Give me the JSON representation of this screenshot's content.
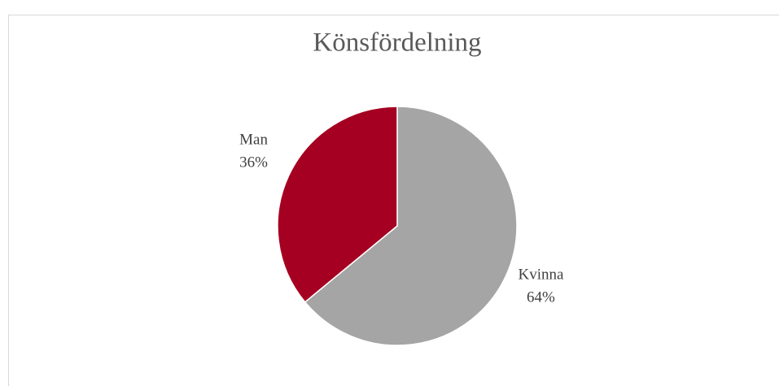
{
  "chart_data": {
    "type": "pie",
    "title": "Könsfördelning",
    "categories": [
      "Kvinna",
      "Man"
    ],
    "values": [
      64,
      36
    ],
    "value_labels": [
      "64%",
      "36%"
    ],
    "colors": [
      "#a5a5a5",
      "#a50021"
    ]
  }
}
